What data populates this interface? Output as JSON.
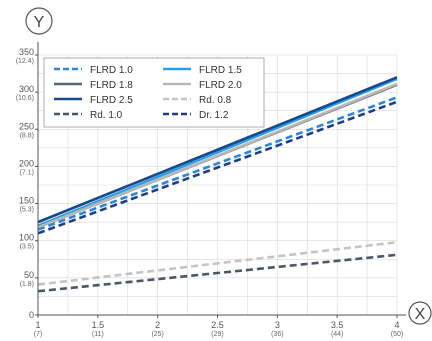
{
  "chart_data": {
    "type": "line",
    "y_axis_letter": "Y",
    "x_axis_letter": "X",
    "xlim": [
      1,
      4
    ],
    "ylim": [
      0,
      350
    ],
    "grid": true,
    "legend_position": "top-left",
    "x_ticks": [
      {
        "value": 1,
        "label": "1",
        "sub": "(7)"
      },
      {
        "value": 1.5,
        "label": "1.5",
        "sub": "(11)"
      },
      {
        "value": 2,
        "label": "2",
        "sub": "(25)"
      },
      {
        "value": 2.5,
        "label": "2.5",
        "sub": "(29)"
      },
      {
        "value": 3,
        "label": "3",
        "sub": "(36)"
      },
      {
        "value": 3.5,
        "label": "3.5",
        "sub": "(44)"
      },
      {
        "value": 4,
        "label": "4",
        "sub": "(50)"
      }
    ],
    "y_ticks": [
      {
        "value": 0,
        "label": "0",
        "sub": ""
      },
      {
        "value": 50,
        "label": "50",
        "sub": "(1.8)"
      },
      {
        "value": 100,
        "label": "100",
        "sub": "(3.5)"
      },
      {
        "value": 150,
        "label": "150",
        "sub": "(5.3)"
      },
      {
        "value": 200,
        "label": "200",
        "sub": "(7.1)"
      },
      {
        "value": 250,
        "label": "250",
        "sub": "(8.8)"
      },
      {
        "value": 300,
        "label": "300",
        "sub": "(10.6)"
      },
      {
        "value": 350,
        "label": "350",
        "sub": "(12.4)"
      }
    ],
    "series": [
      {
        "name": "FLRD 1.0",
        "color": "#2f86d6",
        "dash": true,
        "x": [
          1,
          4
        ],
        "y": [
          115,
          293
        ]
      },
      {
        "name": "FLRD 1.5",
        "color": "#2a9ee8",
        "dash": false,
        "x": [
          1,
          4
        ],
        "y": [
          120,
          318
        ]
      },
      {
        "name": "FLRD 1.8",
        "color": "#5a6472",
        "dash": false,
        "x": [
          1,
          4
        ],
        "y": [
          118,
          310
        ]
      },
      {
        "name": "FLRD 2.0",
        "color": "#b8b8b8",
        "dash": false,
        "x": [
          1,
          4
        ],
        "y": [
          118,
          311
        ]
      },
      {
        "name": "FLRD 2.5",
        "color": "#174a8c",
        "dash": false,
        "x": [
          1,
          4
        ],
        "y": [
          125,
          320
        ]
      },
      {
        "name": "Rd. 0.8",
        "color": "#c4c4c4",
        "dash": true,
        "x": [
          1,
          4
        ],
        "y": [
          41,
          98
        ]
      },
      {
        "name": "Rd. 1.0",
        "color": "#4b5666",
        "dash": true,
        "x": [
          1,
          4
        ],
        "y": [
          32,
          81
        ]
      },
      {
        "name": "Dr. 1.2",
        "color": "#1c3f85",
        "dash": true,
        "x": [
          1,
          4
        ],
        "y": [
          110,
          287
        ]
      }
    ]
  }
}
